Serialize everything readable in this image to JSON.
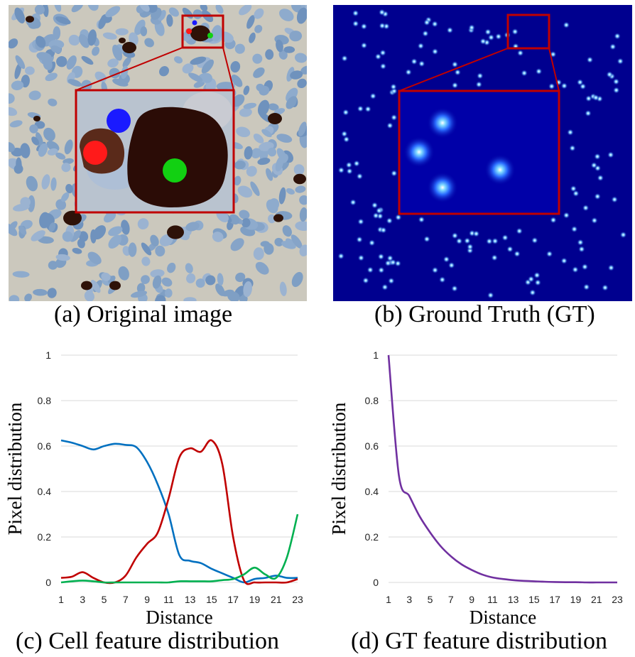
{
  "panels": {
    "a": {
      "caption": "(a) Original image"
    },
    "b": {
      "caption": "(b) Ground Truth (GT)"
    },
    "c": {
      "caption": "(c) Cell feature distribution"
    },
    "d": {
      "caption": "(d) GT feature distribution"
    }
  },
  "colors": {
    "tissue_bg": "#c9c6bb",
    "nucleus_blue": "#7f9fc4",
    "stain_brown": "#3a1a0e",
    "gt_bg": "#00008f",
    "gt_dot": "#5fb0ff",
    "box_red": "#c00000",
    "marker_red": "#ff1a1a",
    "marker_blue": "#1a1aff",
    "marker_green": "#12d012"
  },
  "chart_data": [
    {
      "type": "line",
      "xlabel": "Distance",
      "ylabel": "Pixel distribution",
      "xlim": [
        1,
        23
      ],
      "ylim": [
        0,
        1
      ],
      "xticks": [
        "1",
        "3",
        "5",
        "7",
        "9",
        "11",
        "13",
        "15",
        "17",
        "19",
        "21",
        "23"
      ],
      "yticks": [
        "0",
        "0.2",
        "0.4",
        "0.6",
        "0.8",
        "1"
      ],
      "grid": true,
      "x": [
        1,
        2,
        3,
        4,
        5,
        6,
        7,
        8,
        9,
        10,
        11,
        12,
        13,
        14,
        15,
        16,
        17,
        18,
        19,
        20,
        21,
        22,
        23
      ],
      "series": [
        {
          "color": "#0070c0",
          "values": [
            0.625,
            0.615,
            0.6,
            0.585,
            0.6,
            0.61,
            0.605,
            0.595,
            0.53,
            0.43,
            0.3,
            0.12,
            0.095,
            0.085,
            0.06,
            0.04,
            0.02,
            0.0,
            0.015,
            0.02,
            0.03,
            0.02,
            0.02
          ]
        },
        {
          "color": "#c00000",
          "values": [
            0.02,
            0.025,
            0.045,
            0.02,
            0.0,
            0.0,
            0.03,
            0.11,
            0.17,
            0.22,
            0.37,
            0.55,
            0.59,
            0.575,
            0.625,
            0.52,
            0.2,
            0.01,
            0.0,
            0.0,
            0.0,
            0.0,
            0.015
          ]
        },
        {
          "color": "#00b050",
          "values": [
            0.0,
            0.005,
            0.008,
            0.005,
            0.0,
            0.0,
            0.0,
            0.0,
            0.0,
            0.0,
            0.0,
            0.005,
            0.005,
            0.005,
            0.005,
            0.01,
            0.015,
            0.035,
            0.065,
            0.035,
            0.02,
            0.11,
            0.3
          ]
        }
      ]
    },
    {
      "type": "line",
      "xlabel": "Distance",
      "ylabel": "Pixel distribution",
      "xlim": [
        1,
        23
      ],
      "ylim": [
        0,
        1
      ],
      "xticks": [
        "1",
        "3",
        "5",
        "7",
        "9",
        "11",
        "13",
        "15",
        "17",
        "19",
        "21",
        "23"
      ],
      "yticks": [
        "0",
        "0.2",
        "0.4",
        "0.6",
        "0.8",
        "1"
      ],
      "grid": true,
      "x": [
        1,
        2,
        3,
        4,
        5,
        6,
        7,
        8,
        9,
        10,
        11,
        12,
        13,
        14,
        15,
        16,
        17,
        18,
        19,
        20,
        21,
        22,
        23
      ],
      "series": [
        {
          "color": "#7030a0",
          "values": [
            1.0,
            0.47,
            0.38,
            0.29,
            0.22,
            0.16,
            0.115,
            0.08,
            0.055,
            0.035,
            0.022,
            0.015,
            0.01,
            0.007,
            0.005,
            0.003,
            0.002,
            0.001,
            0.001,
            0.0,
            0.0,
            0.0,
            0.0
          ]
        }
      ]
    }
  ]
}
